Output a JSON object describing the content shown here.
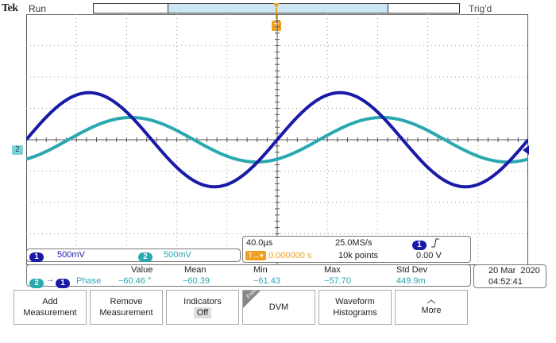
{
  "brand": "Tek",
  "run_state": "Run",
  "trigger_state": "Trig'd",
  "trigger_marker": "T",
  "ch2_marker": "2",
  "colors": {
    "ch1": "#1a1aa8",
    "ch2": "#2aa8b0",
    "trigger": "#f0a020",
    "grid": "#9a9a9a"
  },
  "chart_data": {
    "type": "line",
    "xlabel": "",
    "ylabel": "",
    "divisions": {
      "horizontal": 10,
      "vertical": 8
    },
    "grid": true,
    "x_unit_per_div": "40.0µs",
    "series": [
      {
        "name": "1",
        "amplitude_div": 1.5,
        "period_div": 5.0,
        "phase_deg": 0
      },
      {
        "name": "2",
        "amplitude_div": 0.71,
        "period_div": 5.0,
        "phase_deg": -60.46
      }
    ]
  },
  "channels": {
    "ch1": {
      "num": "1",
      "scale": "500mV"
    },
    "ch2": {
      "num": "2",
      "scale": "500mV"
    }
  },
  "horizontal": {
    "time_per_div": "40.0µs",
    "sample_rate": "25.0MS/s",
    "trigger_delay": "0.000000 s",
    "record_length": "10k points"
  },
  "trigger": {
    "source": "1",
    "slope_icon": "rising-edge",
    "level": "0.00 V"
  },
  "measurement": {
    "sources": [
      "2",
      "1"
    ],
    "name": "Phase",
    "headers": [
      "Value",
      "Mean",
      "Min",
      "Max",
      "Std Dev"
    ],
    "values": [
      "−60.46 °",
      "−60.39",
      "−61.43",
      "−57.70",
      "449.9m"
    ]
  },
  "datetime": {
    "date": "20 Mar  2020",
    "time": "04:52:41"
  },
  "buttons": [
    {
      "line1": "Add",
      "line2": "Measurement"
    },
    {
      "line1": "Remove",
      "line2": "Measurement"
    },
    {
      "line1": "Indicators",
      "line2": "Off"
    },
    {
      "line1": "DVM",
      "line2": "",
      "tag": "Free"
    },
    {
      "line1": "Waveform",
      "line2": "Histograms"
    },
    {
      "line1": "More",
      "line2": ""
    }
  ]
}
